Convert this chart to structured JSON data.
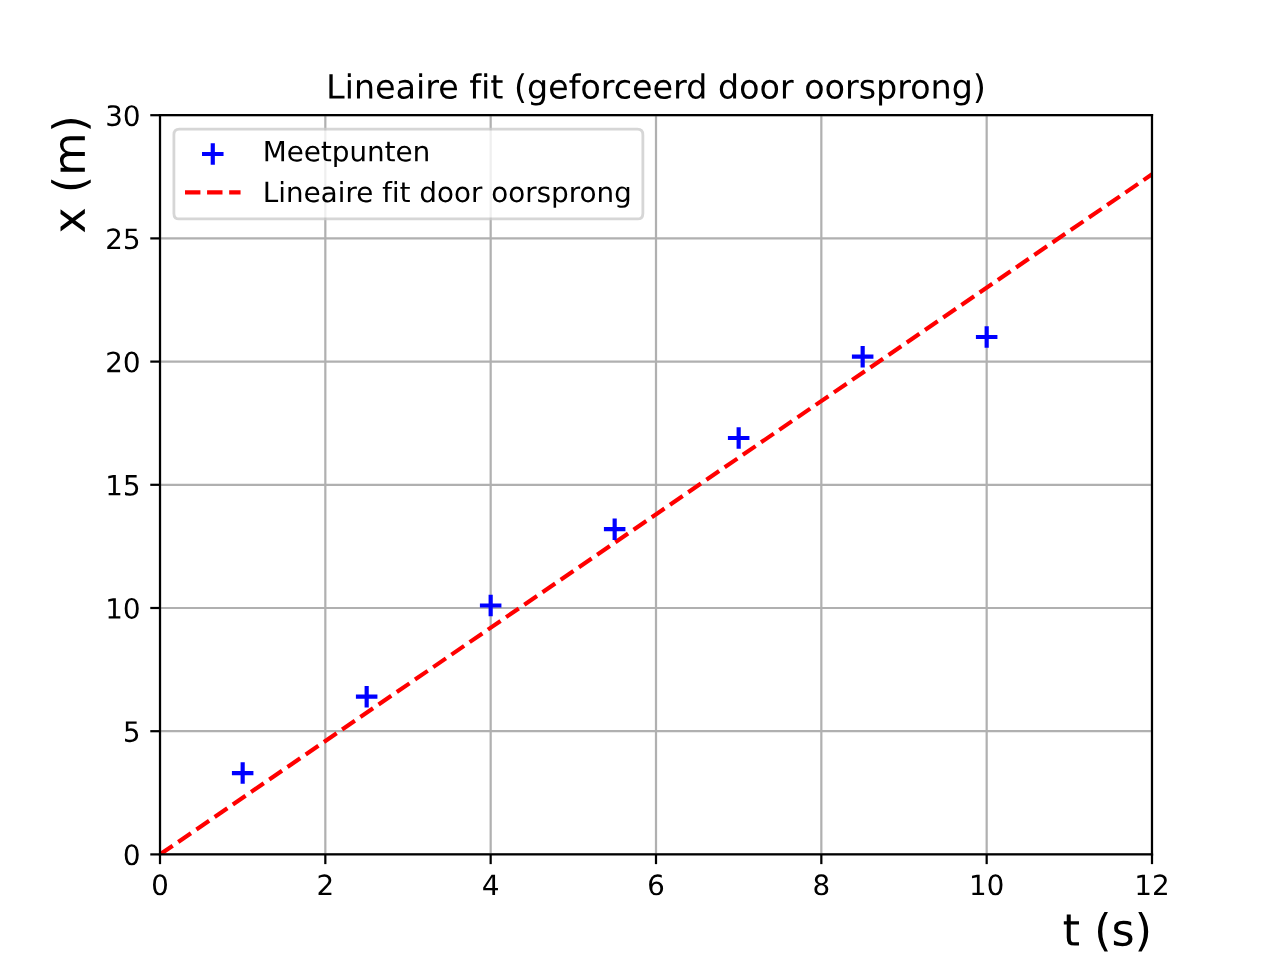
{
  "chart_data": {
    "type": "scatter",
    "title": "Lineaire fit (geforceerd door oorsprong)",
    "xlabel": "t (s)",
    "ylabel": "x (m)",
    "xlim": [
      0,
      12
    ],
    "ylim": [
      0,
      30
    ],
    "xticks": [
      0,
      2,
      4,
      6,
      8,
      10,
      12
    ],
    "yticks": [
      0,
      5,
      10,
      15,
      20,
      25,
      30
    ],
    "grid": true,
    "legend": "top left",
    "series": [
      {
        "name": "Meetpunten",
        "color": "#0000ff",
        "marker": "cross",
        "x": [
          1,
          2.5,
          4,
          5.5,
          7,
          8.5,
          10
        ],
        "values": [
          3.3,
          6.4,
          10.1,
          13.2,
          16.9,
          20.2,
          21.0
        ]
      },
      {
        "name": "Lineaire fit door oorsprong",
        "type": "line",
        "color": "#ff0000",
        "marker": "none",
        "line_style": "dashed",
        "x": [
          0,
          12
        ],
        "values": [
          0,
          27.6
        ]
      }
    ]
  }
}
